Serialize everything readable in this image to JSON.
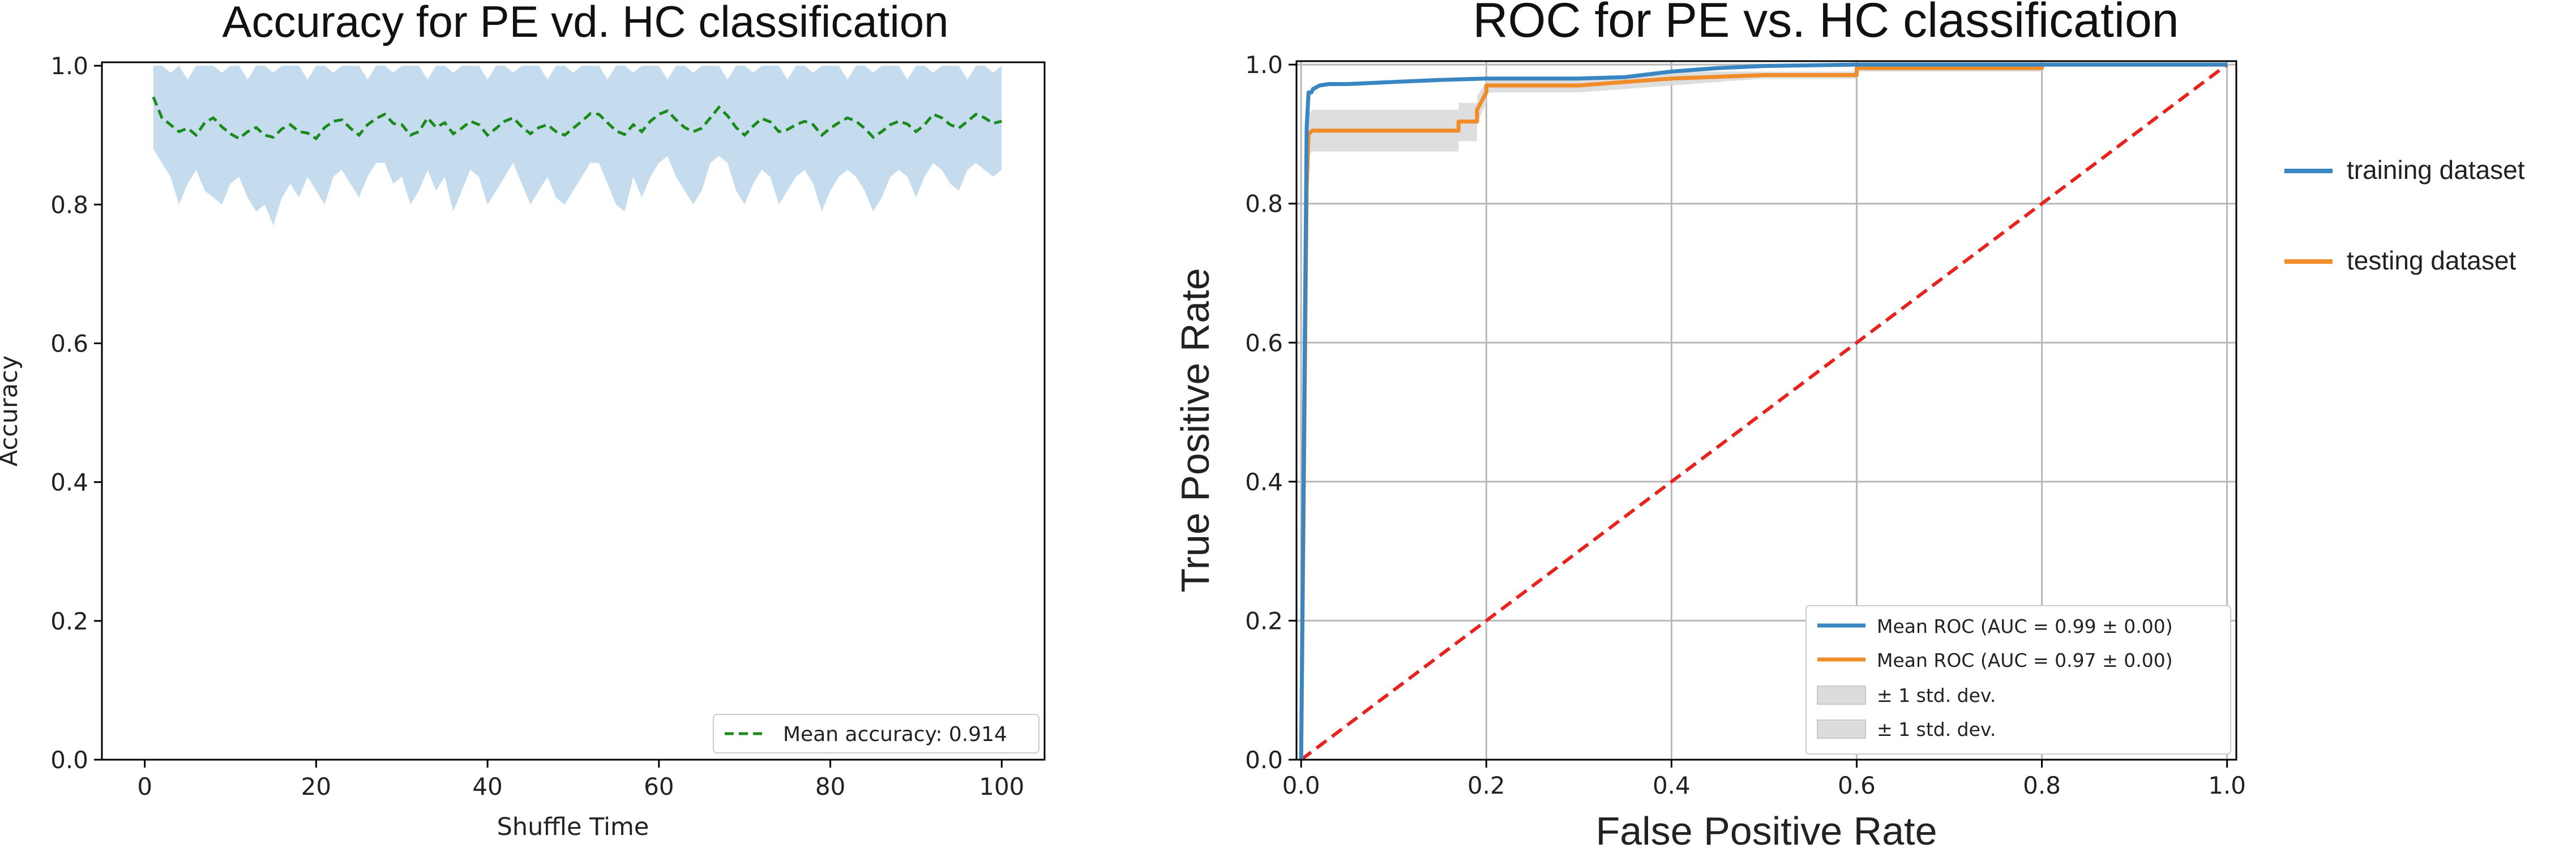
{
  "chart_data": [
    {
      "type": "line",
      "title": "Accuracy for PE vd. HC classification",
      "xlabel": "Shuffle Time",
      "ylabel": "Accuracy",
      "xlim": [
        -5,
        105
      ],
      "ylim": [
        0,
        1.005
      ],
      "xticks": [
        "0",
        "20",
        "40",
        "60",
        "80",
        "100"
      ],
      "yticks": [
        "0.0",
        "0.2",
        "0.4",
        "0.6",
        "0.8",
        "1.0"
      ],
      "grid": false,
      "legend_location": "lower-right",
      "colors": {
        "mean_line": "#1a8a1a",
        "band": "#c5dcee"
      },
      "series": [
        {
          "name": "Mean accuracy",
          "legend_label": "Mean accuracy:  0.914",
          "mean_value": 0.914,
          "style": "dashed",
          "x_start": 1,
          "x_step": 1,
          "values": [
            0.955,
            0.925,
            0.915,
            0.905,
            0.91,
            0.9,
            0.918,
            0.925,
            0.912,
            0.902,
            0.895,
            0.905,
            0.911,
            0.9,
            0.897,
            0.909,
            0.915,
            0.905,
            0.903,
            0.895,
            0.911,
            0.92,
            0.922,
            0.91,
            0.9,
            0.915,
            0.924,
            0.93,
            0.917,
            0.915,
            0.9,
            0.905,
            0.925,
            0.911,
            0.918,
            0.902,
            0.91,
            0.92,
            0.915,
            0.9,
            0.91,
            0.92,
            0.925,
            0.912,
            0.902,
            0.911,
            0.915,
            0.905,
            0.9,
            0.91,
            0.92,
            0.931,
            0.93,
            0.918,
            0.906,
            0.901,
            0.915,
            0.905,
            0.92,
            0.93,
            0.935,
            0.922,
            0.911,
            0.905,
            0.91,
            0.925,
            0.94,
            0.928,
            0.911,
            0.9,
            0.913,
            0.924,
            0.919,
            0.905,
            0.908,
            0.915,
            0.92,
            0.915,
            0.9,
            0.91,
            0.918,
            0.925,
            0.92,
            0.91,
            0.897,
            0.905,
            0.915,
            0.92,
            0.916,
            0.905,
            0.915,
            0.93,
            0.925,
            0.915,
            0.91,
            0.92,
            0.93,
            0.925,
            0.917,
            0.92
          ],
          "band_upper": [
            1.0,
            1.0,
            0.99,
            1.0,
            0.98,
            1.0,
            1.0,
            1.0,
            0.99,
            1.0,
            1.0,
            0.98,
            1.0,
            1.0,
            0.99,
            1.0,
            1.0,
            1.0,
            0.98,
            1.0,
            1.0,
            0.99,
            1.0,
            1.0,
            1.0,
            0.98,
            1.0,
            1.0,
            0.99,
            1.0,
            1.0,
            1.0,
            0.98,
            1.0,
            1.0,
            0.99,
            1.0,
            1.0,
            1.0,
            0.98,
            1.0,
            1.0,
            0.99,
            1.0,
            1.0,
            1.0,
            0.98,
            1.0,
            1.0,
            0.99,
            1.0,
            1.0,
            1.0,
            0.98,
            1.0,
            1.0,
            0.99,
            1.0,
            1.0,
            1.0,
            0.98,
            1.0,
            1.0,
            0.99,
            1.0,
            1.0,
            1.0,
            0.98,
            1.0,
            1.0,
            0.99,
            1.0,
            1.0,
            1.0,
            0.98,
            1.0,
            1.0,
            0.99,
            1.0,
            1.0,
            1.0,
            0.98,
            1.0,
            1.0,
            0.99,
            1.0,
            1.0,
            1.0,
            0.98,
            1.0,
            1.0,
            0.99,
            1.0,
            1.0,
            1.0,
            0.98,
            1.0,
            1.0,
            0.99,
            1.0
          ],
          "band_lower": [
            0.88,
            0.86,
            0.84,
            0.8,
            0.83,
            0.85,
            0.82,
            0.81,
            0.8,
            0.83,
            0.84,
            0.81,
            0.79,
            0.8,
            0.77,
            0.81,
            0.83,
            0.81,
            0.84,
            0.82,
            0.8,
            0.84,
            0.85,
            0.83,
            0.81,
            0.84,
            0.86,
            0.86,
            0.83,
            0.84,
            0.8,
            0.82,
            0.85,
            0.82,
            0.84,
            0.79,
            0.82,
            0.85,
            0.84,
            0.8,
            0.82,
            0.84,
            0.86,
            0.83,
            0.8,
            0.82,
            0.84,
            0.81,
            0.8,
            0.82,
            0.84,
            0.86,
            0.86,
            0.83,
            0.8,
            0.79,
            0.84,
            0.81,
            0.84,
            0.86,
            0.87,
            0.84,
            0.82,
            0.8,
            0.82,
            0.86,
            0.87,
            0.86,
            0.82,
            0.8,
            0.83,
            0.85,
            0.84,
            0.8,
            0.82,
            0.84,
            0.85,
            0.83,
            0.79,
            0.82,
            0.84,
            0.85,
            0.84,
            0.82,
            0.79,
            0.81,
            0.84,
            0.85,
            0.84,
            0.81,
            0.84,
            0.86,
            0.85,
            0.83,
            0.82,
            0.85,
            0.86,
            0.85,
            0.84,
            0.85
          ]
        }
      ]
    },
    {
      "type": "line",
      "title": "ROC for PE vs. HC classification",
      "xlabel": "False Positive Rate",
      "ylabel": "True Positive Rate",
      "xlim": [
        -0.005,
        1.01
      ],
      "ylim": [
        0,
        1.005
      ],
      "xticks": [
        "0.0",
        "0.2",
        "0.4",
        "0.6",
        "0.8",
        "1.0"
      ],
      "yticks": [
        "0.0",
        "0.2",
        "0.4",
        "0.6",
        "0.8",
        "1.0"
      ],
      "grid": true,
      "legend_location": "lower-right",
      "colors": {
        "training": "#3a86c3",
        "testing": "#f08c2a",
        "chance": "#e8231d",
        "band": "#d8d8d8"
      },
      "series": [
        {
          "name": "Mean ROC (AUC = 0.99 ± 0.00)",
          "auc": 0.99,
          "x": [
            0,
            0.006,
            0.008,
            0.011,
            0.013,
            0.02,
            0.03,
            0.05,
            0.1,
            0.15,
            0.2,
            0.3,
            0.35,
            0.4,
            0.45,
            0.5,
            0.6,
            0.7,
            0.8,
            0.9,
            1.0
          ],
          "y": [
            0,
            0.91,
            0.96,
            0.96,
            0.965,
            0.97,
            0.972,
            0.972,
            0.975,
            0.978,
            0.98,
            0.98,
            0.982,
            0.99,
            0.995,
            0.998,
            1.0,
            1.0,
            1.0,
            1.0,
            1.0
          ]
        },
        {
          "name": "Mean ROC (AUC = 0.97 ± 0.00)",
          "auc": 0.97,
          "x": [
            0,
            0.003,
            0.006,
            0.008,
            0.012,
            0.17,
            0.17,
            0.19,
            0.19,
            0.2,
            0.2,
            0.3,
            0.35,
            0.4,
            0.5,
            0.6,
            0.6,
            0.8,
            0.8,
            1.0
          ],
          "y": [
            0,
            0.4,
            0.82,
            0.9,
            0.905,
            0.905,
            0.918,
            0.918,
            0.935,
            0.96,
            0.97,
            0.97,
            0.975,
            0.98,
            0.985,
            0.985,
            0.995,
            0.995,
            1.0,
            1.0
          ],
          "band_upper": [
            0,
            0.45,
            0.85,
            0.93,
            0.935,
            0.935,
            0.945,
            0.945,
            0.955,
            0.975,
            0.98,
            0.98,
            0.985,
            0.99,
            0.99,
            0.99,
            1.0,
            1.0,
            1.0,
            1.0
          ],
          "band_lower": [
            0,
            0.35,
            0.78,
            0.87,
            0.875,
            0.875,
            0.89,
            0.89,
            0.915,
            0.945,
            0.96,
            0.96,
            0.965,
            0.97,
            0.98,
            0.98,
            0.99,
            0.99,
            1.0,
            1.0
          ]
        },
        {
          "name": "chance",
          "x": [
            0,
            1
          ],
          "y": [
            0,
            1
          ],
          "style": "dashed"
        }
      ],
      "legend_items": [
        "Mean ROC (AUC = 0.99 ± 0.00)",
        "Mean ROC (AUC = 0.97 ± 0.00)",
        "± 1 std. dev.",
        "± 1 std. dev."
      ],
      "outer_legend": [
        "training dataset",
        "testing dataset"
      ]
    }
  ]
}
